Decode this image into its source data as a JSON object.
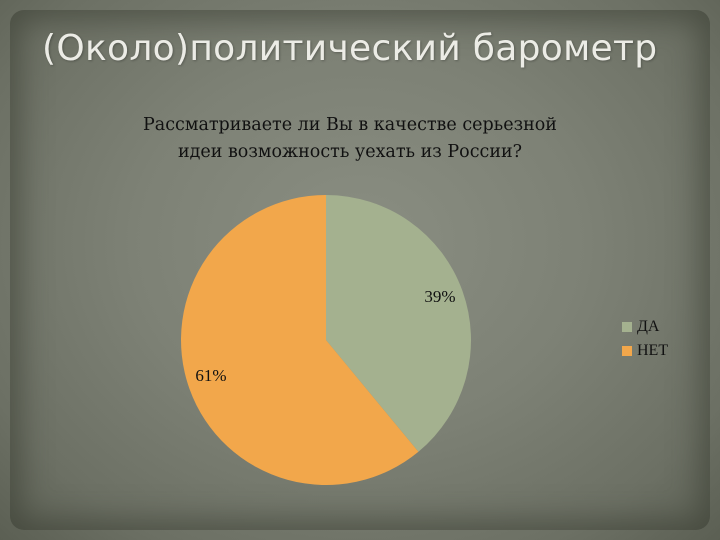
{
  "slide": {
    "title": "(Около)политический барометр"
  },
  "chart_data": {
    "type": "pie",
    "title_lines": [
      "Рассматриваете ли Вы в качестве серьезной",
      "идеи возможность уехать из России?"
    ],
    "categories": [
      "ДА",
      "НЕТ"
    ],
    "values": [
      39,
      61
    ],
    "labels": [
      "39%",
      "61%"
    ],
    "colors": [
      "#a4b18f",
      "#f2a74b"
    ],
    "legend_position": "right"
  }
}
